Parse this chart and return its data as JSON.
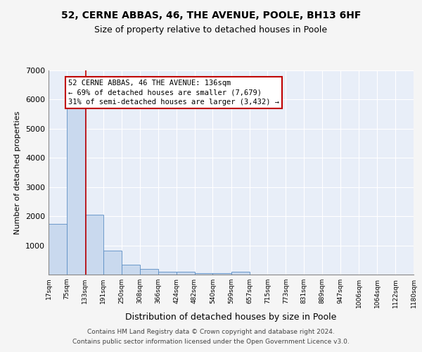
{
  "title1": "52, CERNE ABBAS, 46, THE AVENUE, POOLE, BH13 6HF",
  "title2": "Size of property relative to detached houses in Poole",
  "xlabel": "Distribution of detached houses by size in Poole",
  "ylabel": "Number of detached properties",
  "bin_edges": [
    17,
    75,
    133,
    191,
    250,
    308,
    366,
    424,
    482,
    540,
    599,
    657,
    715,
    773,
    831,
    889,
    947,
    1006,
    1064,
    1122,
    1180
  ],
  "bar_heights": [
    1750,
    5750,
    2050,
    830,
    330,
    185,
    105,
    90,
    55,
    50,
    85,
    0,
    0,
    0,
    0,
    0,
    0,
    0,
    0,
    0
  ],
  "bar_color": "#c9d9ee",
  "bar_edgecolor": "#5b8ec4",
  "property_size": 136,
  "vline_color": "#c00000",
  "annotation_line1": "52 CERNE ABBAS, 46 THE AVENUE: 136sqm",
  "annotation_line2": "← 69% of detached houses are smaller (7,679)",
  "annotation_line3": "31% of semi-detached houses are larger (3,432) →",
  "annotation_box_edgecolor": "#c00000",
  "annotation_box_facecolor": "#ffffff",
  "ylim": [
    0,
    7000
  ],
  "yticks": [
    0,
    1000,
    2000,
    3000,
    4000,
    5000,
    6000,
    7000
  ],
  "footer1": "Contains HM Land Registry data © Crown copyright and database right 2024.",
  "footer2": "Contains public sector information licensed under the Open Government Licence v3.0.",
  "bg_color": "#e8eef8",
  "grid_color": "#ffffff",
  "title1_fontsize": 10,
  "title2_fontsize": 9,
  "tick_labels": [
    "17sqm",
    "75sqm",
    "133sqm",
    "191sqm",
    "250sqm",
    "308sqm",
    "366sqm",
    "424sqm",
    "482sqm",
    "540sqm",
    "599sqm",
    "657sqm",
    "715sqm",
    "773sqm",
    "831sqm",
    "889sqm",
    "947sqm",
    "1006sqm",
    "1064sqm",
    "1122sqm",
    "1180sqm"
  ]
}
